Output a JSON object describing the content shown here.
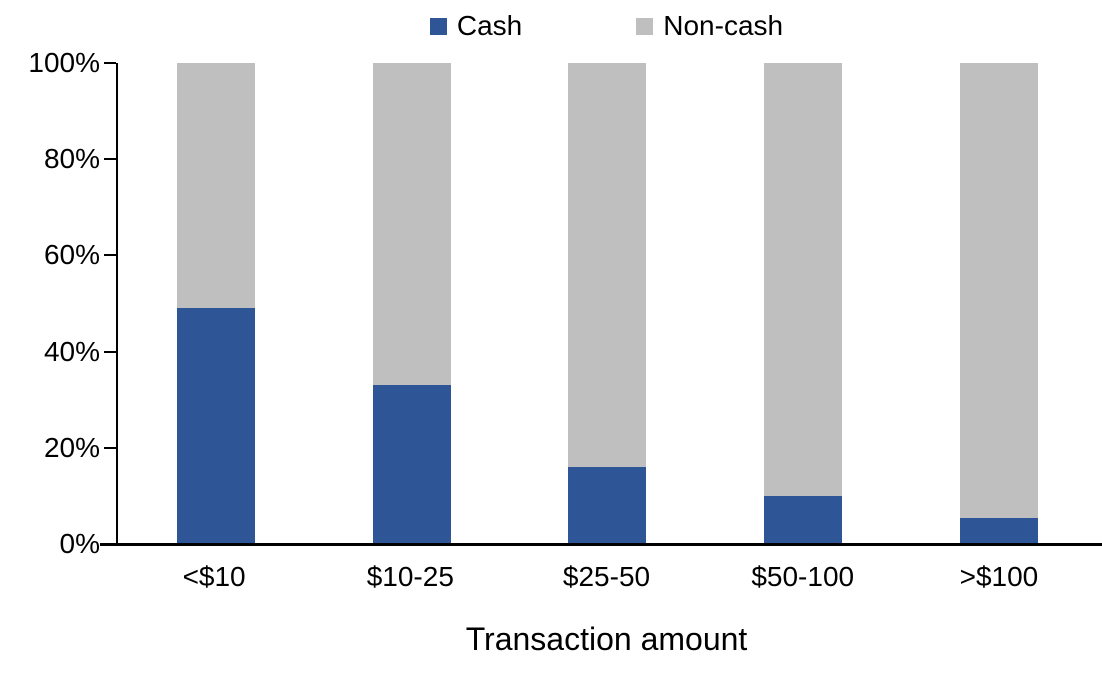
{
  "figure": {
    "background": "#ffffff",
    "axis_color": "#000000"
  },
  "legend": {
    "position": "top-center",
    "items": [
      {
        "label": "Cash",
        "color": "#2E5596"
      },
      {
        "label": "Non-cash",
        "color": "#BFBFBF"
      }
    ]
  },
  "chart_data": {
    "type": "bar",
    "stacked": true,
    "normalized": true,
    "title": "",
    "xlabel": "Transaction amount",
    "ylabel": "",
    "categories": [
      "<$10",
      "$10-25",
      "$25-50",
      "$50-100",
      ">$100"
    ],
    "series": [
      {
        "name": "Cash",
        "color": "#2E5596",
        "values": [
          49,
          33,
          16,
          10,
          5.5
        ]
      },
      {
        "name": "Non-cash",
        "color": "#BFBFBF",
        "values": [
          51,
          67,
          84,
          90,
          94.5
        ]
      }
    ],
    "ylim": [
      0,
      100
    ],
    "y_ticks": [
      "0%",
      "20%",
      "40%",
      "60%",
      "80%",
      "100%"
    ],
    "grid": false,
    "legend_position": "top"
  }
}
